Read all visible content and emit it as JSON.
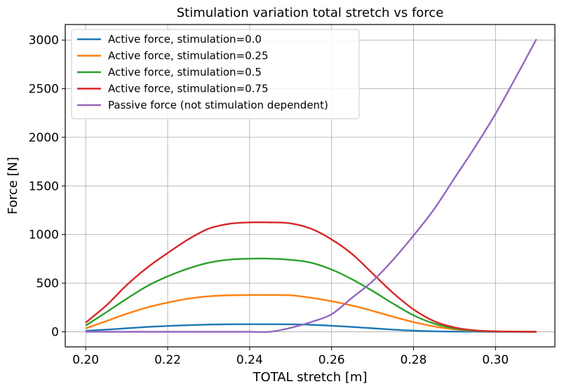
{
  "chart_data": {
    "type": "line",
    "title": "Stimulation variation total stretch vs force",
    "xlabel": "TOTAL stretch [m]",
    "ylabel": "Force [N]",
    "xlim": [
      0.195,
      0.3145
    ],
    "ylim": [
      -155,
      3160
    ],
    "xticks": [
      0.2,
      0.22,
      0.24,
      0.26,
      0.28,
      0.3
    ],
    "xtick_labels": [
      "0.20",
      "0.22",
      "0.24",
      "0.26",
      "0.28",
      "0.30"
    ],
    "yticks": [
      0,
      500,
      1000,
      1500,
      2000,
      2500,
      3000
    ],
    "ytick_labels": [
      "0",
      "500",
      "1000",
      "1500",
      "2000",
      "2500",
      "3000"
    ],
    "grid": true,
    "legend_position": "top-left",
    "x": [
      0.2,
      0.205,
      0.21,
      0.215,
      0.22,
      0.225,
      0.23,
      0.235,
      0.24,
      0.245,
      0.25,
      0.255,
      0.26,
      0.265,
      0.27,
      0.275,
      0.28,
      0.285,
      0.29,
      0.295,
      0.3,
      0.305,
      0.31
    ],
    "series": [
      {
        "name": "Active force, stimulation=0.0",
        "color": "#1f77b4",
        "values": [
          10,
          22,
          36,
          50,
          60,
          68,
          74,
          77,
          78,
          78,
          77,
          72,
          62,
          50,
          36,
          22,
          12,
          5,
          2,
          1,
          0,
          0,
          0
        ]
      },
      {
        "name": "Active force, stimulation=0.25",
        "color": "#ff7f0e",
        "values": [
          35,
          110,
          185,
          250,
          300,
          340,
          365,
          375,
          378,
          378,
          375,
          350,
          315,
          270,
          215,
          155,
          100,
          55,
          25,
          10,
          3,
          1,
          0
        ]
      },
      {
        "name": "Active force, stimulation=0.5",
        "color": "#2ca02c",
        "values": [
          65,
          200,
          340,
          470,
          570,
          650,
          710,
          742,
          752,
          752,
          740,
          710,
          640,
          540,
          420,
          290,
          170,
          85,
          35,
          12,
          3,
          1,
          0
        ]
      },
      {
        "name": "Active force, stimulation=0.75",
        "color": "#d62728",
        "values": [
          95,
          270,
          480,
          660,
          810,
          950,
          1060,
          1110,
          1125,
          1125,
          1115,
          1060,
          950,
          800,
          600,
          400,
          230,
          110,
          45,
          15,
          5,
          2,
          0
        ]
      },
      {
        "name": "Passive force (not stimulation dependent)",
        "color": "#9467bd",
        "values": [
          0,
          0,
          0,
          0,
          0,
          0,
          0,
          0,
          0,
          0,
          40,
          100,
          180,
          350,
          520,
          740,
          990,
          1260,
          1580,
          1900,
          2240,
          2620,
          3010
        ]
      }
    ]
  }
}
